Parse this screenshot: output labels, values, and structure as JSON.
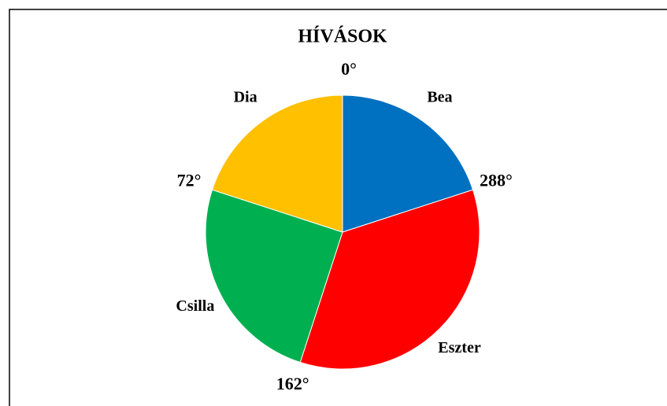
{
  "chart_data": {
    "type": "pie",
    "title": "HÍVÁSOK",
    "categories": [
      "Bea",
      "Eszter",
      "Csilla",
      "Dia"
    ],
    "values": [
      72,
      126,
      90,
      72
    ],
    "colors": [
      "#0070c0",
      "#ff0000",
      "#00b050",
      "#ffc000"
    ],
    "annotations": [
      "0°",
      "288°",
      "162°",
      "72°"
    ]
  }
}
